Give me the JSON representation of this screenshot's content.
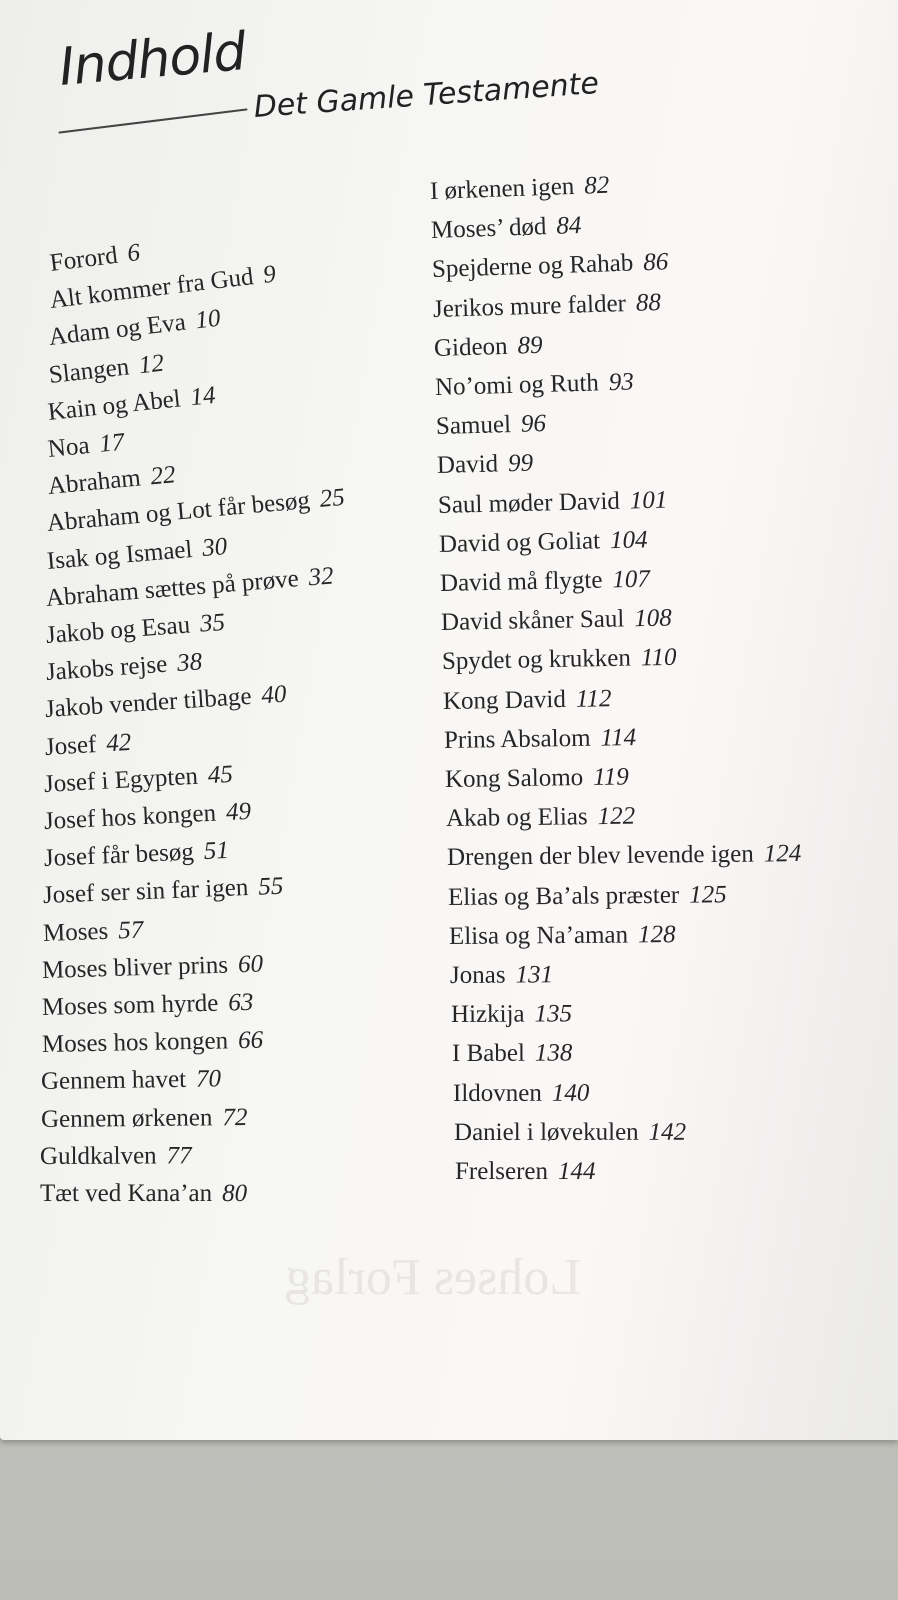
{
  "header": {
    "title": "Indhold",
    "subtitle": "Det Gamle Testamente"
  },
  "left_column": [
    {
      "title": "Forord",
      "page": 6
    },
    {
      "title": "Alt kommer fra Gud",
      "page": 9
    },
    {
      "title": "Adam og Eva",
      "page": 10
    },
    {
      "title": "Slangen",
      "page": 12
    },
    {
      "title": "Kain og Abel",
      "page": 14
    },
    {
      "title": "Noa",
      "page": 17
    },
    {
      "title": "Abraham",
      "page": 22
    },
    {
      "title": "Abraham og Lot får besøg",
      "page": 25
    },
    {
      "title": "Isak og Ismael",
      "page": 30
    },
    {
      "title": "Abraham sættes på prøve",
      "page": 32
    },
    {
      "title": "Jakob og Esau",
      "page": 35
    },
    {
      "title": "Jakobs rejse",
      "page": 38
    },
    {
      "title": "Jakob vender tilbage",
      "page": 40
    },
    {
      "title": "Josef",
      "page": 42
    },
    {
      "title": "Josef i Egypten",
      "page": 45
    },
    {
      "title": "Josef hos kongen",
      "page": 49
    },
    {
      "title": "Josef får besøg",
      "page": 51
    },
    {
      "title": "Josef ser sin far igen",
      "page": 55
    },
    {
      "title": "Moses",
      "page": 57
    },
    {
      "title": "Moses bliver prins",
      "page": 60
    },
    {
      "title": "Moses som hyrde",
      "page": 63
    },
    {
      "title": "Moses hos kongen",
      "page": 66
    },
    {
      "title": "Gennem havet",
      "page": 70
    },
    {
      "title": "Gennem ørkenen",
      "page": 72
    },
    {
      "title": "Guldkalven",
      "page": 77
    },
    {
      "title": "Tæt ved Kana’an",
      "page": 80
    }
  ],
  "right_column": [
    {
      "title": "I ørkenen igen",
      "page": 82
    },
    {
      "title": "Moses’ død",
      "page": 84
    },
    {
      "title": "Spejderne og Rahab",
      "page": 86
    },
    {
      "title": "Jerikos mure falder",
      "page": 88
    },
    {
      "title": "Gideon",
      "page": 89
    },
    {
      "title": "No’omi og Ruth",
      "page": 93
    },
    {
      "title": "Samuel",
      "page": 96
    },
    {
      "title": "David",
      "page": 99
    },
    {
      "title": "Saul møder David",
      "page": 101
    },
    {
      "title": "David og Goliat",
      "page": 104
    },
    {
      "title": "David må flygte",
      "page": 107
    },
    {
      "title": "David skåner Saul",
      "page": 108
    },
    {
      "title": "Spydet og krukken",
      "page": 110
    },
    {
      "title": "Kong David",
      "page": 112
    },
    {
      "title": "Prins Absalom",
      "page": 114
    },
    {
      "title": "Kong Salomo",
      "page": 119
    },
    {
      "title": "Akab og Elias",
      "page": 122
    },
    {
      "title": "Drengen der blev levende igen",
      "page": 124
    },
    {
      "title": "Elias og Ba’als præster",
      "page": 125
    },
    {
      "title": "Elisa og Na’aman",
      "page": 128
    },
    {
      "title": "Jonas",
      "page": 131
    },
    {
      "title": "Hizkija",
      "page": 135
    },
    {
      "title": "I Babel",
      "page": 138
    },
    {
      "title": "Ildovnen",
      "page": 140
    },
    {
      "title": "Daniel i løvekulen",
      "page": 142
    },
    {
      "title": "Frelseren",
      "page": 144
    }
  ],
  "show_through": "Lohses Forlag"
}
